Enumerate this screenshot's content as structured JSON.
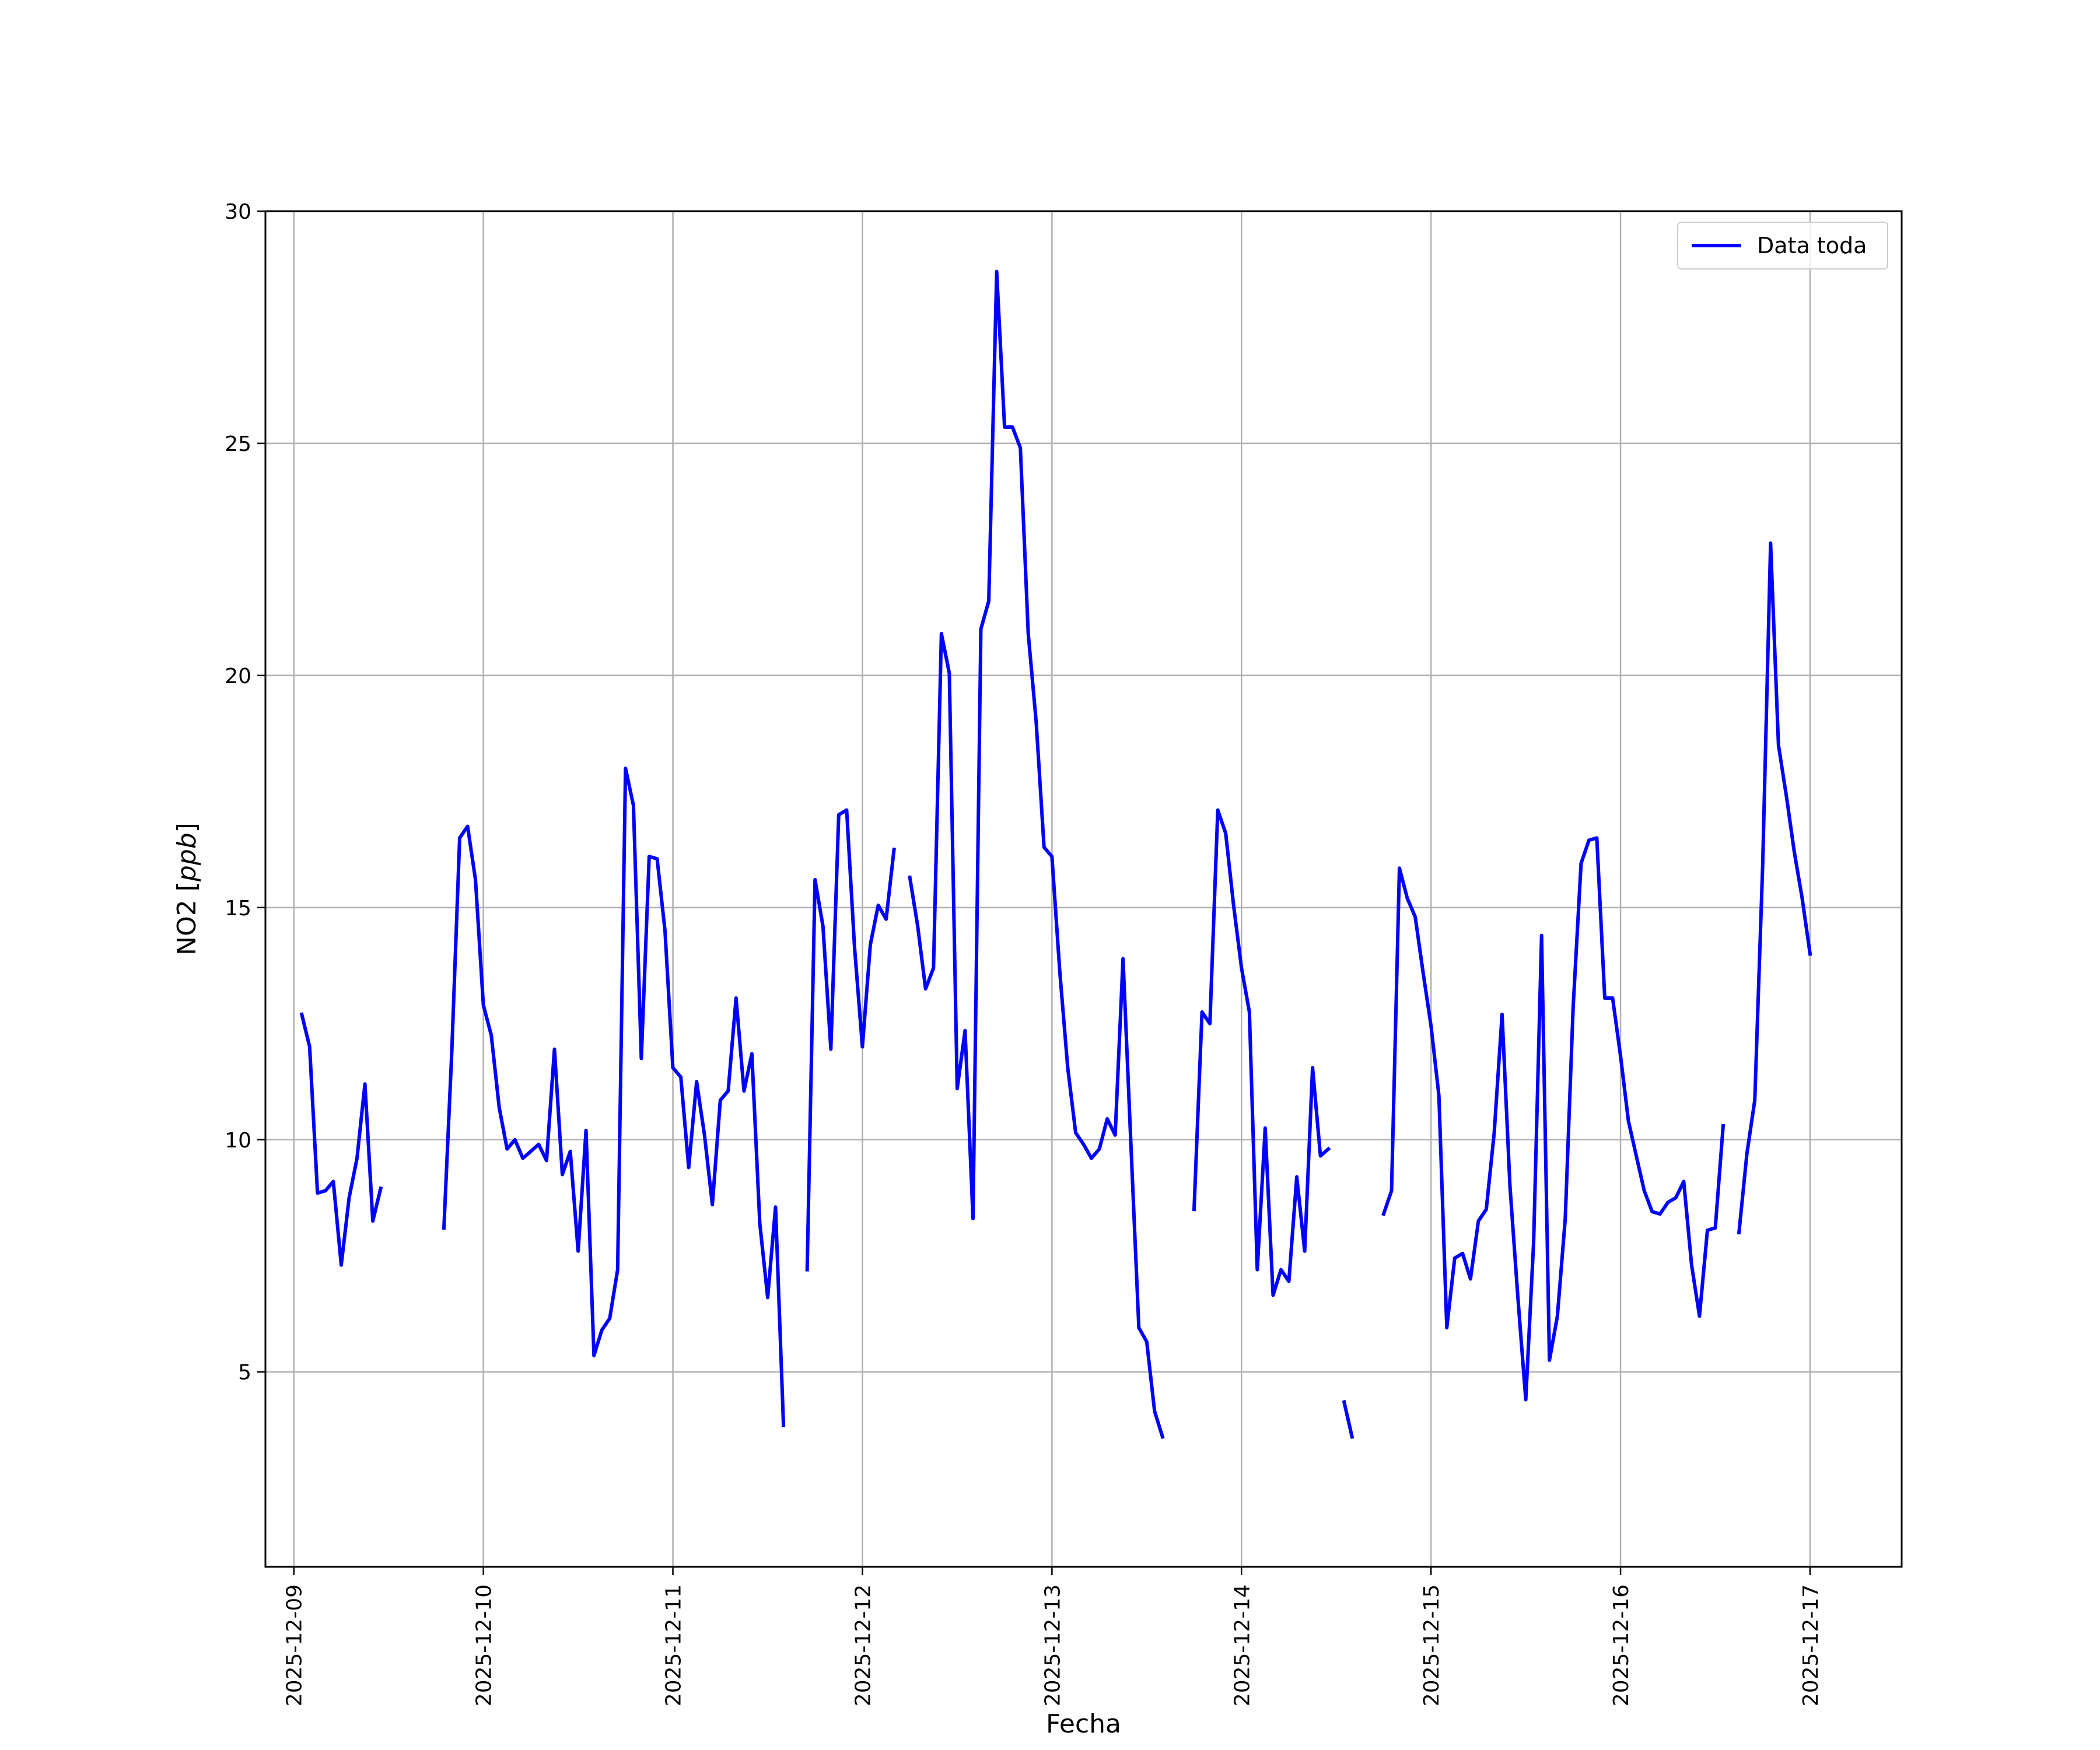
{
  "chart_data": {
    "type": "line",
    "xlabel": "Fecha",
    "ylabel": "NO2 [ppb]",
    "ylabel_unit_italic": "ppb",
    "ylabel_prefix": "NO2 [",
    "ylabel_suffix": "]",
    "xlim": [
      "2025-12-08T20:24",
      "2025-12-17T11:36"
    ],
    "ylim": [
      0.8,
      30
    ],
    "yticks": [
      5,
      10,
      15,
      20,
      25,
      30
    ],
    "xticks": [
      "2025-12-09",
      "2025-12-10",
      "2025-12-11",
      "2025-12-12",
      "2025-12-13",
      "2025-12-14",
      "2025-12-15",
      "2025-12-16",
      "2025-12-17"
    ],
    "grid": true,
    "legend": {
      "placement": "top-right",
      "entries": [
        "Data toda"
      ]
    },
    "series": [
      {
        "name": "Data toda",
        "color": "#0000ff",
        "segments": [
          [
            [
              "2025-12-09T01:00",
              12.7
            ],
            [
              "2025-12-09T02:00",
              12.0
            ],
            [
              "2025-12-09T03:00",
              8.85
            ],
            [
              "2025-12-09T04:00",
              8.9
            ],
            [
              "2025-12-09T05:00",
              9.1
            ],
            [
              "2025-12-09T06:00",
              7.3
            ],
            [
              "2025-12-09T07:00",
              8.75
            ],
            [
              "2025-12-09T08:00",
              9.6
            ],
            [
              "2025-12-09T09:00",
              11.2
            ],
            [
              "2025-12-09T10:00",
              8.25
            ],
            [
              "2025-12-09T11:00",
              8.95
            ]
          ],
          [
            [
              "2025-12-09T19:00",
              8.1
            ],
            [
              "2025-12-09T20:00",
              11.9
            ],
            [
              "2025-12-09T21:00",
              16.5
            ],
            [
              "2025-12-09T22:00",
              16.75
            ],
            [
              "2025-12-09T23:00",
              15.6
            ],
            [
              "2025-12-10T00:00",
              12.9
            ],
            [
              "2025-12-10T01:00",
              12.25
            ],
            [
              "2025-12-10T02:00",
              10.7
            ],
            [
              "2025-12-10T03:00",
              9.8
            ],
            [
              "2025-12-10T04:00",
              10.0
            ],
            [
              "2025-12-10T05:00",
              9.6
            ],
            [
              "2025-12-10T06:00",
              9.75
            ],
            [
              "2025-12-10T07:00",
              9.9
            ],
            [
              "2025-12-10T08:00",
              9.55
            ],
            [
              "2025-12-10T09:00",
              11.95
            ],
            [
              "2025-12-10T10:00",
              9.25
            ],
            [
              "2025-12-10T11:00",
              9.75
            ],
            [
              "2025-12-10T12:00",
              7.6
            ],
            [
              "2025-12-10T13:00",
              10.2
            ],
            [
              "2025-12-10T14:00",
              5.35
            ],
            [
              "2025-12-10T15:00",
              5.9
            ],
            [
              "2025-12-10T16:00",
              6.15
            ],
            [
              "2025-12-10T17:00",
              7.2
            ],
            [
              "2025-12-10T18:00",
              18.0
            ],
            [
              "2025-12-10T19:00",
              17.2
            ],
            [
              "2025-12-10T20:00",
              11.75
            ],
            [
              "2025-12-10T21:00",
              16.1
            ],
            [
              "2025-12-10T22:00",
              16.05
            ],
            [
              "2025-12-10T23:00",
              14.5
            ],
            [
              "2025-12-11T00:00",
              11.55
            ],
            [
              "2025-12-11T01:00",
              11.35
            ],
            [
              "2025-12-11T02:00",
              9.4
            ],
            [
              "2025-12-11T03:00",
              11.25
            ],
            [
              "2025-12-11T04:00",
              10.1
            ],
            [
              "2025-12-11T05:00",
              8.6
            ],
            [
              "2025-12-11T06:00",
              10.85
            ],
            [
              "2025-12-11T07:00",
              11.05
            ],
            [
              "2025-12-11T08:00",
              13.05
            ],
            [
              "2025-12-11T09:00",
              11.05
            ],
            [
              "2025-12-11T10:00",
              11.85
            ],
            [
              "2025-12-11T11:00",
              8.2
            ],
            [
              "2025-12-11T12:00",
              6.6
            ],
            [
              "2025-12-11T13:00",
              8.55
            ],
            [
              "2025-12-11T14:00",
              3.85
            ]
          ],
          [
            [
              "2025-12-11T17:00",
              7.2
            ],
            [
              "2025-12-11T18:00",
              15.6
            ],
            [
              "2025-12-11T19:00",
              14.6
            ],
            [
              "2025-12-11T20:00",
              11.95
            ],
            [
              "2025-12-11T21:00",
              17.0
            ],
            [
              "2025-12-11T22:00",
              17.1
            ],
            [
              "2025-12-11T23:00",
              14.15
            ],
            [
              "2025-12-12T00:00",
              12.0
            ],
            [
              "2025-12-12T01:00",
              14.2
            ],
            [
              "2025-12-12T02:00",
              15.05
            ],
            [
              "2025-12-12T03:00",
              14.75
            ],
            [
              "2025-12-12T04:00",
              16.25
            ]
          ],
          [
            [
              "2025-12-12T06:00",
              15.65
            ],
            [
              "2025-12-12T07:00",
              14.6
            ],
            [
              "2025-12-12T08:00",
              13.25
            ],
            [
              "2025-12-12T09:00",
              13.7
            ],
            [
              "2025-12-12T10:00",
              20.9
            ],
            [
              "2025-12-12T11:00",
              20.05
            ],
            [
              "2025-12-12T12:00",
              11.1
            ],
            [
              "2025-12-12T13:00",
              12.35
            ],
            [
              "2025-12-12T14:00",
              8.3
            ],
            [
              "2025-12-12T15:00",
              21.0
            ],
            [
              "2025-12-12T16:00",
              21.6
            ],
            [
              "2025-12-12T17:00",
              28.7
            ],
            [
              "2025-12-12T18:00",
              25.35
            ],
            [
              "2025-12-12T19:00",
              25.35
            ],
            [
              "2025-12-12T20:00",
              24.9
            ],
            [
              "2025-12-12T21:00",
              20.9
            ],
            [
              "2025-12-12T22:00",
              19.0
            ],
            [
              "2025-12-12T23:00",
              16.3
            ],
            [
              "2025-12-13T00:00",
              16.1
            ],
            [
              "2025-12-13T01:00",
              13.6
            ],
            [
              "2025-12-13T02:00",
              11.55
            ],
            [
              "2025-12-13T03:00",
              10.15
            ],
            [
              "2025-12-13T04:00",
              9.9
            ],
            [
              "2025-12-13T05:00",
              9.6
            ],
            [
              "2025-12-13T06:00",
              9.8
            ],
            [
              "2025-12-13T07:00",
              10.45
            ],
            [
              "2025-12-13T08:00",
              10.1
            ],
            [
              "2025-12-13T09:00",
              13.9
            ],
            [
              "2025-12-13T10:00",
              9.9
            ],
            [
              "2025-12-13T11:00",
              5.95
            ],
            [
              "2025-12-13T12:00",
              5.65
            ],
            [
              "2025-12-13T13:00",
              4.15
            ],
            [
              "2025-12-13T14:00",
              3.6
            ]
          ],
          [
            [
              "2025-12-13T18:00",
              8.5
            ],
            [
              "2025-12-13T19:00",
              12.75
            ],
            [
              "2025-12-13T20:00",
              12.5
            ],
            [
              "2025-12-13T21:00",
              17.1
            ],
            [
              "2025-12-13T22:00",
              16.6
            ],
            [
              "2025-12-13T23:00",
              15.05
            ],
            [
              "2025-12-14T00:00",
              13.7
            ],
            [
              "2025-12-14T01:00",
              12.75
            ],
            [
              "2025-12-14T02:00",
              7.2
            ],
            [
              "2025-12-14T03:00",
              10.25
            ],
            [
              "2025-12-14T04:00",
              6.65
            ],
            [
              "2025-12-14T05:00",
              7.2
            ],
            [
              "2025-12-14T06:00",
              6.95
            ],
            [
              "2025-12-14T07:00",
              9.2
            ],
            [
              "2025-12-14T08:00",
              7.6
            ],
            [
              "2025-12-14T09:00",
              11.55
            ],
            [
              "2025-12-14T10:00",
              9.65
            ],
            [
              "2025-12-14T11:00",
              9.8
            ]
          ],
          [
            [
              "2025-12-14T13:00",
              4.35
            ],
            [
              "2025-12-14T14:00",
              3.6
            ]
          ],
          [
            [
              "2025-12-14T18:00",
              8.4
            ],
            [
              "2025-12-14T19:00",
              8.9
            ],
            [
              "2025-12-14T20:00",
              15.85
            ],
            [
              "2025-12-14T21:00",
              15.2
            ],
            [
              "2025-12-14T22:00",
              14.8
            ],
            [
              "2025-12-14T23:00",
              13.6
            ],
            [
              "2025-12-15T00:00",
              12.45
            ],
            [
              "2025-12-15T01:00",
              10.95
            ],
            [
              "2025-12-15T02:00",
              5.95
            ],
            [
              "2025-12-15T03:00",
              7.45
            ],
            [
              "2025-12-15T04:00",
              7.55
            ],
            [
              "2025-12-15T05:00",
              7.0
            ],
            [
              "2025-12-15T06:00",
              8.25
            ],
            [
              "2025-12-15T07:00",
              8.5
            ],
            [
              "2025-12-15T08:00",
              10.15
            ],
            [
              "2025-12-15T09:00",
              12.7
            ],
            [
              "2025-12-15T10:00",
              9.0
            ],
            [
              "2025-12-15T11:00",
              6.6
            ],
            [
              "2025-12-15T12:00",
              4.4
            ],
            [
              "2025-12-15T13:00",
              7.8
            ],
            [
              "2025-12-15T14:00",
              14.4
            ],
            [
              "2025-12-15T15:00",
              5.25
            ],
            [
              "2025-12-15T16:00",
              6.2
            ],
            [
              "2025-12-15T17:00",
              8.3
            ],
            [
              "2025-12-15T18:00",
              12.85
            ],
            [
              "2025-12-15T19:00",
              15.95
            ],
            [
              "2025-12-15T20:00",
              16.45
            ],
            [
              "2025-12-15T21:00",
              16.5
            ],
            [
              "2025-12-15T22:00",
              13.05
            ],
            [
              "2025-12-15T23:00",
              13.05
            ],
            [
              "2025-12-16T00:00",
              11.8
            ],
            [
              "2025-12-16T01:00",
              10.4
            ],
            [
              "2025-12-16T02:00",
              9.65
            ],
            [
              "2025-12-16T03:00",
              8.9
            ],
            [
              "2025-12-16T04:00",
              8.45
            ],
            [
              "2025-12-16T05:00",
              8.4
            ],
            [
              "2025-12-16T06:00",
              8.65
            ],
            [
              "2025-12-16T07:00",
              8.75
            ],
            [
              "2025-12-16T08:00",
              9.1
            ],
            [
              "2025-12-16T09:00",
              7.3
            ],
            [
              "2025-12-16T10:00",
              6.2
            ],
            [
              "2025-12-16T11:00",
              8.05
            ],
            [
              "2025-12-16T12:00",
              8.1
            ],
            [
              "2025-12-16T13:00",
              10.3
            ]
          ],
          [
            [
              "2025-12-16T15:00",
              8.0
            ],
            [
              "2025-12-16T16:00",
              9.7
            ],
            [
              "2025-12-16T17:00",
              10.85
            ],
            [
              "2025-12-16T18:00",
              15.9
            ],
            [
              "2025-12-16T19:00",
              22.85
            ],
            [
              "2025-12-16T20:00",
              18.5
            ],
            [
              "2025-12-16T21:00",
              17.4
            ],
            [
              "2025-12-16T22:00",
              16.2
            ],
            [
              "2025-12-16T23:00",
              15.2
            ],
            [
              "2025-12-17T00:00",
              14.0
            ]
          ]
        ]
      }
    ]
  }
}
